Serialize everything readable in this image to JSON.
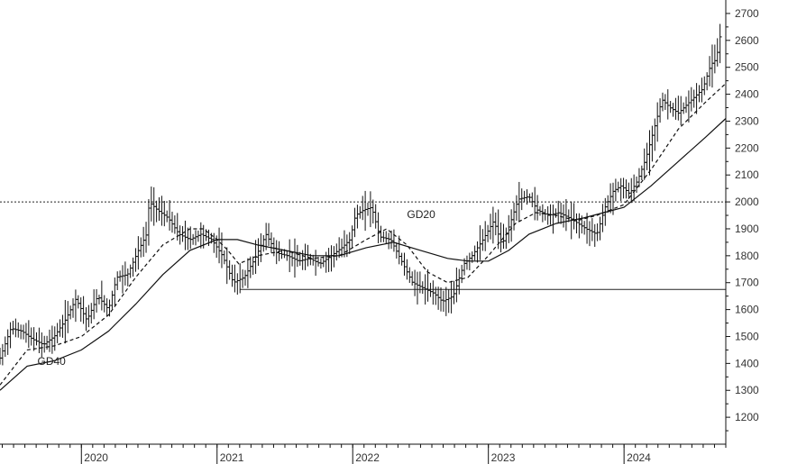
{
  "chart_data": {
    "type": "line",
    "title": "",
    "xlabel": "",
    "ylabel": "",
    "xlim": [
      2019.4,
      2024.75
    ],
    "ylim": [
      1100,
      2750
    ],
    "y_ticks": [
      1200,
      1300,
      1400,
      1500,
      1600,
      1700,
      1800,
      1900,
      2000,
      2100,
      2200,
      2300,
      2400,
      2500,
      2600,
      2700
    ],
    "x_ticks": [
      {
        "label": "2020",
        "x": 2020.0
      },
      {
        "label": "2021",
        "x": 2021.0
      },
      {
        "label": "2022",
        "x": 2022.0
      },
      {
        "label": "2023",
        "x": 2023.0
      },
      {
        "label": "2024",
        "x": 2024.0
      }
    ],
    "grid": false,
    "y_axis_side": "right",
    "reference_lines": [
      {
        "style": "dotted",
        "y": 2000
      },
      {
        "style": "solid",
        "y": 1675,
        "x_from": 2021.17
      }
    ],
    "price_series": {
      "style": "ohlc-bars",
      "points": [
        [
          2019.4,
          1420
        ],
        [
          2019.48,
          1530
        ],
        [
          2019.56,
          1520
        ],
        [
          2019.64,
          1490
        ],
        [
          2019.72,
          1470
        ],
        [
          2019.8,
          1500
        ],
        [
          2019.88,
          1560
        ],
        [
          2019.96,
          1640
        ],
        [
          2020.04,
          1560
        ],
        [
          2020.12,
          1650
        ],
        [
          2020.2,
          1600
        ],
        [
          2020.26,
          1720
        ],
        [
          2020.34,
          1730
        ],
        [
          2020.42,
          1820
        ],
        [
          2020.48,
          1880
        ],
        [
          2020.5,
          2000
        ],
        [
          2020.56,
          1970
        ],
        [
          2020.64,
          1940
        ],
        [
          2020.72,
          1880
        ],
        [
          2020.8,
          1860
        ],
        [
          2020.88,
          1880
        ],
        [
          2020.96,
          1860
        ],
        [
          2021.04,
          1800
        ],
        [
          2021.12,
          1700
        ],
        [
          2021.2,
          1720
        ],
        [
          2021.28,
          1790
        ],
        [
          2021.36,
          1880
        ],
        [
          2021.44,
          1810
        ],
        [
          2021.52,
          1800
        ],
        [
          2021.6,
          1780
        ],
        [
          2021.68,
          1790
        ],
        [
          2021.76,
          1770
        ],
        [
          2021.84,
          1800
        ],
        [
          2021.92,
          1830
        ],
        [
          2021.98,
          1860
        ],
        [
          2022.02,
          1950
        ],
        [
          2022.08,
          1970
        ],
        [
          2022.14,
          1980
        ],
        [
          2022.2,
          1870
        ],
        [
          2022.28,
          1860
        ],
        [
          2022.36,
          1780
        ],
        [
          2022.44,
          1700
        ],
        [
          2022.52,
          1680
        ],
        [
          2022.6,
          1660
        ],
        [
          2022.66,
          1630
        ],
        [
          2022.74,
          1650
        ],
        [
          2022.82,
          1770
        ],
        [
          2022.88,
          1800
        ],
        [
          2022.96,
          1860
        ],
        [
          2023.04,
          1930
        ],
        [
          2023.1,
          1840
        ],
        [
          2023.16,
          1920
        ],
        [
          2023.22,
          2010
        ],
        [
          2023.3,
          2020
        ],
        [
          2023.36,
          1970
        ],
        [
          2023.44,
          1950
        ],
        [
          2023.52,
          1960
        ],
        [
          2023.6,
          1940
        ],
        [
          2023.66,
          1920
        ],
        [
          2023.72,
          1900
        ],
        [
          2023.8,
          1880
        ],
        [
          2023.86,
          1980
        ],
        [
          2023.92,
          2040
        ],
        [
          2023.98,
          2060
        ],
        [
          2024.04,
          2030
        ],
        [
          2024.1,
          2080
        ],
        [
          2024.16,
          2160
        ],
        [
          2024.22,
          2270
        ],
        [
          2024.28,
          2380
        ],
        [
          2024.34,
          2350
        ],
        [
          2024.4,
          2330
        ],
        [
          2024.46,
          2360
        ],
        [
          2024.52,
          2390
        ],
        [
          2024.58,
          2420
        ],
        [
          2024.64,
          2510
        ],
        [
          2024.68,
          2530
        ],
        [
          2024.72,
          2650
        ]
      ]
    },
    "series": [
      {
        "name": "GD20",
        "style": "dashed",
        "points": [
          [
            2019.4,
            1320
          ],
          [
            2019.6,
            1450
          ],
          [
            2019.8,
            1465
          ],
          [
            2020.0,
            1500
          ],
          [
            2020.2,
            1580
          ],
          [
            2020.4,
            1720
          ],
          [
            2020.6,
            1840
          ],
          [
            2020.8,
            1900
          ],
          [
            2020.9,
            1900
          ],
          [
            2021.0,
            1860
          ],
          [
            2021.08,
            1820
          ],
          [
            2021.16,
            1770
          ],
          [
            2021.3,
            1800
          ],
          [
            2021.5,
            1820
          ],
          [
            2021.7,
            1790
          ],
          [
            2021.9,
            1800
          ],
          [
            2022.1,
            1860
          ],
          [
            2022.25,
            1900
          ],
          [
            2022.4,
            1840
          ],
          [
            2022.55,
            1740
          ],
          [
            2022.7,
            1700
          ],
          [
            2022.85,
            1720
          ],
          [
            2023.0,
            1800
          ],
          [
            2023.1,
            1860
          ],
          [
            2023.2,
            1920
          ],
          [
            2023.35,
            1960
          ],
          [
            2023.5,
            1950
          ],
          [
            2023.65,
            1930
          ],
          [
            2023.8,
            1950
          ],
          [
            2024.0,
            1990
          ],
          [
            2024.2,
            2120
          ],
          [
            2024.4,
            2270
          ],
          [
            2024.6,
            2370
          ],
          [
            2024.75,
            2440
          ]
        ]
      },
      {
        "name": "GD40",
        "style": "solid",
        "points": [
          [
            2019.4,
            1300
          ],
          [
            2019.6,
            1390
          ],
          [
            2019.8,
            1410
          ],
          [
            2020.0,
            1450
          ],
          [
            2020.2,
            1520
          ],
          [
            2020.4,
            1620
          ],
          [
            2020.6,
            1730
          ],
          [
            2020.8,
            1820
          ],
          [
            2021.0,
            1860
          ],
          [
            2021.15,
            1860
          ],
          [
            2021.3,
            1840
          ],
          [
            2021.5,
            1820
          ],
          [
            2021.7,
            1800
          ],
          [
            2021.9,
            1800
          ],
          [
            2022.1,
            1830
          ],
          [
            2022.3,
            1850
          ],
          [
            2022.5,
            1820
          ],
          [
            2022.7,
            1790
          ],
          [
            2022.85,
            1780
          ],
          [
            2023.0,
            1780
          ],
          [
            2023.15,
            1820
          ],
          [
            2023.3,
            1880
          ],
          [
            2023.5,
            1920
          ],
          [
            2023.7,
            1940
          ],
          [
            2023.85,
            1960
          ],
          [
            2024.0,
            1980
          ],
          [
            2024.2,
            2060
          ],
          [
            2024.4,
            2150
          ],
          [
            2024.6,
            2240
          ],
          [
            2024.75,
            2310
          ]
        ]
      }
    ]
  }
}
